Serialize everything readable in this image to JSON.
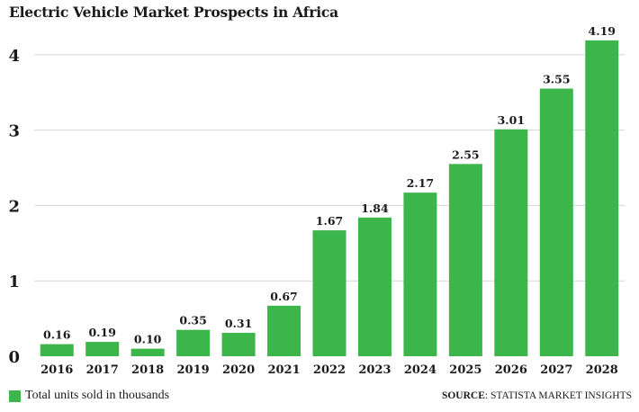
{
  "accent_color": "#3cb54a",
  "chart_data": {
    "type": "bar",
    "title": "Electric Vehicle Market Prospects in Africa",
    "categories": [
      "2016",
      "2017",
      "2018",
      "2019",
      "2020",
      "2021",
      "2022",
      "2023",
      "2024",
      "2025",
      "2026",
      "2027",
      "2028"
    ],
    "series": [
      {
        "name": "Total units sold in thousands",
        "values": [
          0.16,
          0.19,
          0.1,
          0.35,
          0.31,
          0.67,
          1.67,
          1.84,
          2.17,
          2.55,
          3.01,
          3.55,
          4.19
        ],
        "labels": [
          "0.16",
          "0.19",
          "0.10",
          "0.35",
          "0.31",
          "0.67",
          "1.67",
          "1.84",
          "2.17",
          "2.55",
          "3.01",
          "3.55",
          "4.19"
        ]
      }
    ],
    "y_ticks": [
      "0",
      "1",
      "2",
      "3",
      "4"
    ],
    "ylim": [
      0,
      4.6
    ],
    "grid": true,
    "legend_position": "bottom-left"
  },
  "source": {
    "prefix": "SOURCE",
    "text": ": STATISTA MARKET INSIGHTS"
  }
}
